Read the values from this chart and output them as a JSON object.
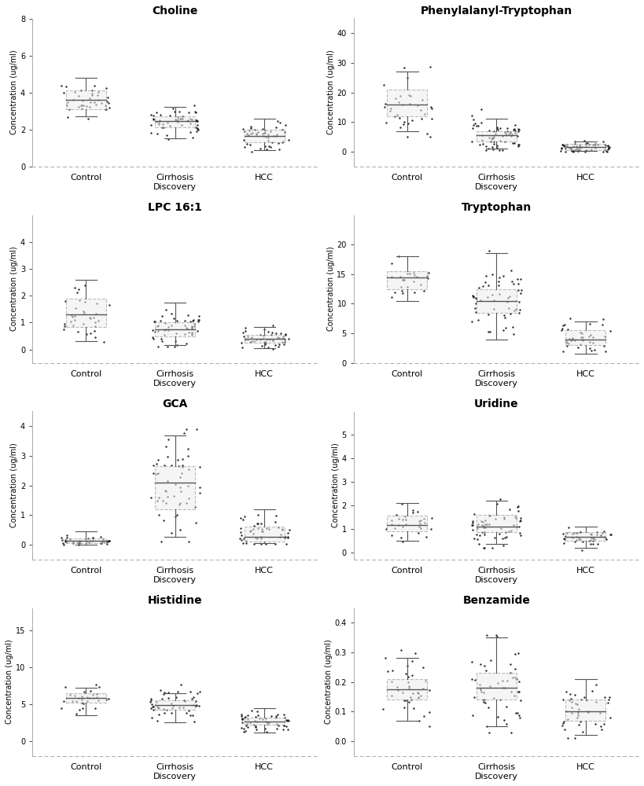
{
  "plots": [
    {
      "title": "Choline",
      "title_bold": true,
      "ylabel": "Concentration (ug/ml)",
      "ylim": [
        0,
        8
      ],
      "yticks": [
        0,
        2,
        4,
        6,
        8
      ],
      "groups": [
        "Control",
        "Cirrhosis\nDiscovery",
        "HCC"
      ],
      "boxes": [
        {
          "q1": 3.1,
          "median": 3.6,
          "q3": 4.1,
          "whislo": 2.7,
          "whishi": 4.8
        },
        {
          "q1": 2.1,
          "median": 2.45,
          "q3": 2.7,
          "whislo": 1.5,
          "whishi": 3.2
        },
        {
          "q1": 1.3,
          "median": 1.65,
          "q3": 2.0,
          "whislo": 0.9,
          "whishi": 2.6
        }
      ],
      "scatter_seed": 1,
      "scatter_n": [
        40,
        55,
        50
      ],
      "scatter_params": [
        {
          "mean": 3.6,
          "std": 0.45,
          "clip_lo": 2.6,
          "clip_hi": 5.0
        },
        {
          "mean": 2.4,
          "std": 0.45,
          "clip_lo": 0.9,
          "clip_hi": 4.2
        },
        {
          "mean": 1.65,
          "std": 0.4,
          "clip_lo": 0.7,
          "clip_hi": 2.9
        }
      ]
    },
    {
      "title": "Phenylalanyl-Tryptophan",
      "title_bold": true,
      "ylabel": "Concentration (ug/ml)",
      "ylim": [
        -5,
        45
      ],
      "yticks": [
        0,
        10,
        20,
        30,
        40
      ],
      "groups": [
        "Control",
        "Cirrhosis\nDiscovery",
        "HCC"
      ],
      "boxes": [
        {
          "q1": 12.0,
          "median": 16.0,
          "q3": 21.0,
          "whislo": 7.0,
          "whishi": 27.0
        },
        {
          "q1": 3.5,
          "median": 5.5,
          "q3": 7.0,
          "whislo": 1.0,
          "whishi": 11.0
        },
        {
          "q1": 0.5,
          "median": 1.5,
          "q3": 2.5,
          "whislo": 0.2,
          "whishi": 3.5
        }
      ],
      "scatter_seed": 2,
      "scatter_n": [
        35,
        65,
        60
      ],
      "scatter_params": [
        {
          "mean": 16.0,
          "std": 5.5,
          "clip_lo": 5.0,
          "clip_hi": 29.0
        },
        {
          "mean": 5.5,
          "std": 3.0,
          "clip_lo": 0.5,
          "clip_hi": 36.0
        },
        {
          "mean": 1.5,
          "std": 1.0,
          "clip_lo": 0.1,
          "clip_hi": 7.5
        }
      ]
    },
    {
      "title": "LPC 16:1",
      "title_bold": true,
      "ylabel": "Concentration (ug/ml)",
      "ylim": [
        -0.5,
        5
      ],
      "yticks": [
        0,
        1,
        2,
        3,
        4
      ],
      "groups": [
        "Control",
        "Cirrhosis\nDiscovery",
        "HCC"
      ],
      "boxes": [
        {
          "q1": 0.85,
          "median": 1.3,
          "q3": 1.9,
          "whislo": 0.3,
          "whishi": 2.6
        },
        {
          "q1": 0.5,
          "median": 0.75,
          "q3": 1.0,
          "whislo": 0.15,
          "whishi": 1.75
        },
        {
          "q1": 0.25,
          "median": 0.4,
          "q3": 0.55,
          "whislo": 0.05,
          "whishi": 0.85
        }
      ],
      "scatter_seed": 3,
      "scatter_n": [
        35,
        55,
        50
      ],
      "scatter_params": [
        {
          "mean": 1.3,
          "std": 0.55,
          "clip_lo": 0.2,
          "clip_hi": 3.6
        },
        {
          "mean": 0.75,
          "std": 0.4,
          "clip_lo": 0.1,
          "clip_hi": 2.6
        },
        {
          "mean": 0.4,
          "std": 0.2,
          "clip_lo": 0.03,
          "clip_hi": 0.9
        }
      ]
    },
    {
      "title": "Tryptophan",
      "title_bold": true,
      "ylabel": "Concentration (ug/ml)",
      "ylim": [
        0,
        25
      ],
      "yticks": [
        0,
        5,
        10,
        15,
        20
      ],
      "groups": [
        "Control",
        "Cirrhosis\nDiscovery",
        "HCC"
      ],
      "boxes": [
        {
          "q1": 12.5,
          "median": 14.5,
          "q3": 15.5,
          "whislo": 10.5,
          "whishi": 18.0
        },
        {
          "q1": 8.5,
          "median": 10.5,
          "q3": 12.5,
          "whislo": 4.0,
          "whishi": 18.5
        },
        {
          "q1": 3.0,
          "median": 4.0,
          "q3": 5.5,
          "whislo": 1.5,
          "whishi": 7.0
        }
      ],
      "scatter_seed": 4,
      "scatter_n": [
        25,
        55,
        40
      ],
      "scatter_params": [
        {
          "mean": 14.0,
          "std": 1.8,
          "clip_lo": 10.0,
          "clip_hi": 19.0
        },
        {
          "mean": 10.5,
          "std": 3.2,
          "clip_lo": 2.5,
          "clip_hi": 19.0
        },
        {
          "mean": 4.2,
          "std": 1.5,
          "clip_lo": 1.0,
          "clip_hi": 7.5
        }
      ]
    },
    {
      "title": "GCA",
      "title_bold": true,
      "ylabel": "Concentration (ug/ml)",
      "ylim": [
        -0.5,
        4.5
      ],
      "yticks": [
        0,
        1,
        2,
        3,
        4
      ],
      "groups": [
        "Control",
        "Cirrhosis\nDiscovery",
        "HCC"
      ],
      "boxes": [
        {
          "q1": 0.05,
          "median": 0.12,
          "q3": 0.22,
          "whislo": 0.01,
          "whishi": 0.45
        },
        {
          "q1": 1.2,
          "median": 2.1,
          "q3": 2.65,
          "whislo": 0.25,
          "whishi": 3.7
        },
        {
          "q1": 0.1,
          "median": 0.25,
          "q3": 0.6,
          "whislo": 0.05,
          "whishi": 1.2
        }
      ],
      "scatter_seed": 5,
      "scatter_n": [
        40,
        55,
        50
      ],
      "scatter_params": [
        {
          "mean": 0.12,
          "std": 0.08,
          "clip_lo": 0.01,
          "clip_hi": 0.55
        },
        {
          "mean": 2.0,
          "std": 0.85,
          "clip_lo": 0.1,
          "clip_hi": 3.9
        },
        {
          "mean": 0.35,
          "std": 0.35,
          "clip_lo": 0.02,
          "clip_hi": 1.8
        }
      ]
    },
    {
      "title": "Uridine",
      "title_bold": true,
      "ylabel": "Concentration (ug/ml)",
      "ylim": [
        -0.3,
        6
      ],
      "yticks": [
        0,
        1,
        2,
        3,
        4,
        5
      ],
      "groups": [
        "Control",
        "Cirrhosis\nDiscovery",
        "HCC"
      ],
      "boxes": [
        {
          "q1": 0.9,
          "median": 1.15,
          "q3": 1.55,
          "whislo": 0.5,
          "whishi": 2.1
        },
        {
          "q1": 0.85,
          "median": 1.1,
          "q3": 1.6,
          "whislo": 0.35,
          "whishi": 2.2
        },
        {
          "q1": 0.5,
          "median": 0.65,
          "q3": 0.85,
          "whislo": 0.2,
          "whishi": 1.1
        }
      ],
      "scatter_seed": 6,
      "scatter_n": [
        30,
        60,
        45
      ],
      "scatter_params": [
        {
          "mean": 1.15,
          "std": 0.35,
          "clip_lo": 0.45,
          "clip_hi": 2.2
        },
        {
          "mean": 1.1,
          "std": 0.5,
          "clip_lo": 0.2,
          "clip_hi": 4.2
        },
        {
          "mean": 0.65,
          "std": 0.2,
          "clip_lo": 0.1,
          "clip_hi": 1.2
        }
      ]
    },
    {
      "title": "Histidine",
      "title_bold": true,
      "ylabel": "Concentration (ug/ml)",
      "ylim": [
        -2,
        18
      ],
      "yticks": [
        0,
        5,
        10,
        15
      ],
      "groups": [
        "Control",
        "Cirrhosis\nDiscovery",
        "HCC"
      ],
      "boxes": [
        {
          "q1": 5.2,
          "median": 5.8,
          "q3": 6.5,
          "whislo": 3.5,
          "whishi": 7.2
        },
        {
          "q1": 4.2,
          "median": 4.9,
          "q3": 5.5,
          "whislo": 2.5,
          "whishi": 6.5
        },
        {
          "q1": 2.2,
          "median": 2.6,
          "q3": 3.2,
          "whislo": 1.2,
          "whishi": 4.5
        }
      ],
      "scatter_seed": 7,
      "scatter_n": [
        30,
        50,
        55
      ],
      "scatter_params": [
        {
          "mean": 5.8,
          "std": 0.9,
          "clip_lo": 2.5,
          "clip_hi": 7.8
        },
        {
          "mean": 4.9,
          "std": 1.2,
          "clip_lo": 1.8,
          "clip_hi": 14.5
        },
        {
          "mean": 2.7,
          "std": 0.75,
          "clip_lo": 0.8,
          "clip_hi": 4.8
        }
      ]
    },
    {
      "title": "Benzamide",
      "title_bold": true,
      "ylabel": "Concentration (ug/ml)",
      "ylim": [
        -0.05,
        0.45
      ],
      "yticks": [
        0.0,
        0.1,
        0.2,
        0.3,
        0.4
      ],
      "groups": [
        "Control",
        "Cirrhosis\nDiscovery",
        "HCC"
      ],
      "boxes": [
        {
          "q1": 0.14,
          "median": 0.175,
          "q3": 0.21,
          "whislo": 0.07,
          "whishi": 0.28
        },
        {
          "q1": 0.14,
          "median": 0.18,
          "q3": 0.23,
          "whislo": 0.05,
          "whishi": 0.35
        },
        {
          "q1": 0.07,
          "median": 0.1,
          "q3": 0.14,
          "whislo": 0.02,
          "whishi": 0.21
        }
      ],
      "scatter_seed": 8,
      "scatter_n": [
        40,
        55,
        45
      ],
      "scatter_params": [
        {
          "mean": 0.175,
          "std": 0.055,
          "clip_lo": 0.05,
          "clip_hi": 0.32
        },
        {
          "mean": 0.18,
          "std": 0.07,
          "clip_lo": 0.03,
          "clip_hi": 0.38
        },
        {
          "mean": 0.1,
          "std": 0.04,
          "clip_lo": 0.01,
          "clip_hi": 0.22
        }
      ]
    }
  ],
  "box_facecolor": "#eeeeee",
  "box_edgecolor": "#888888",
  "scatter_color": "#111111",
  "scatter_size": 3,
  "whisker_color": "#555555",
  "median_color": "#555555",
  "background_color": "#ffffff",
  "bottom_spine_color": "#aaaaaa",
  "left_spine_color": "#aaaaaa"
}
